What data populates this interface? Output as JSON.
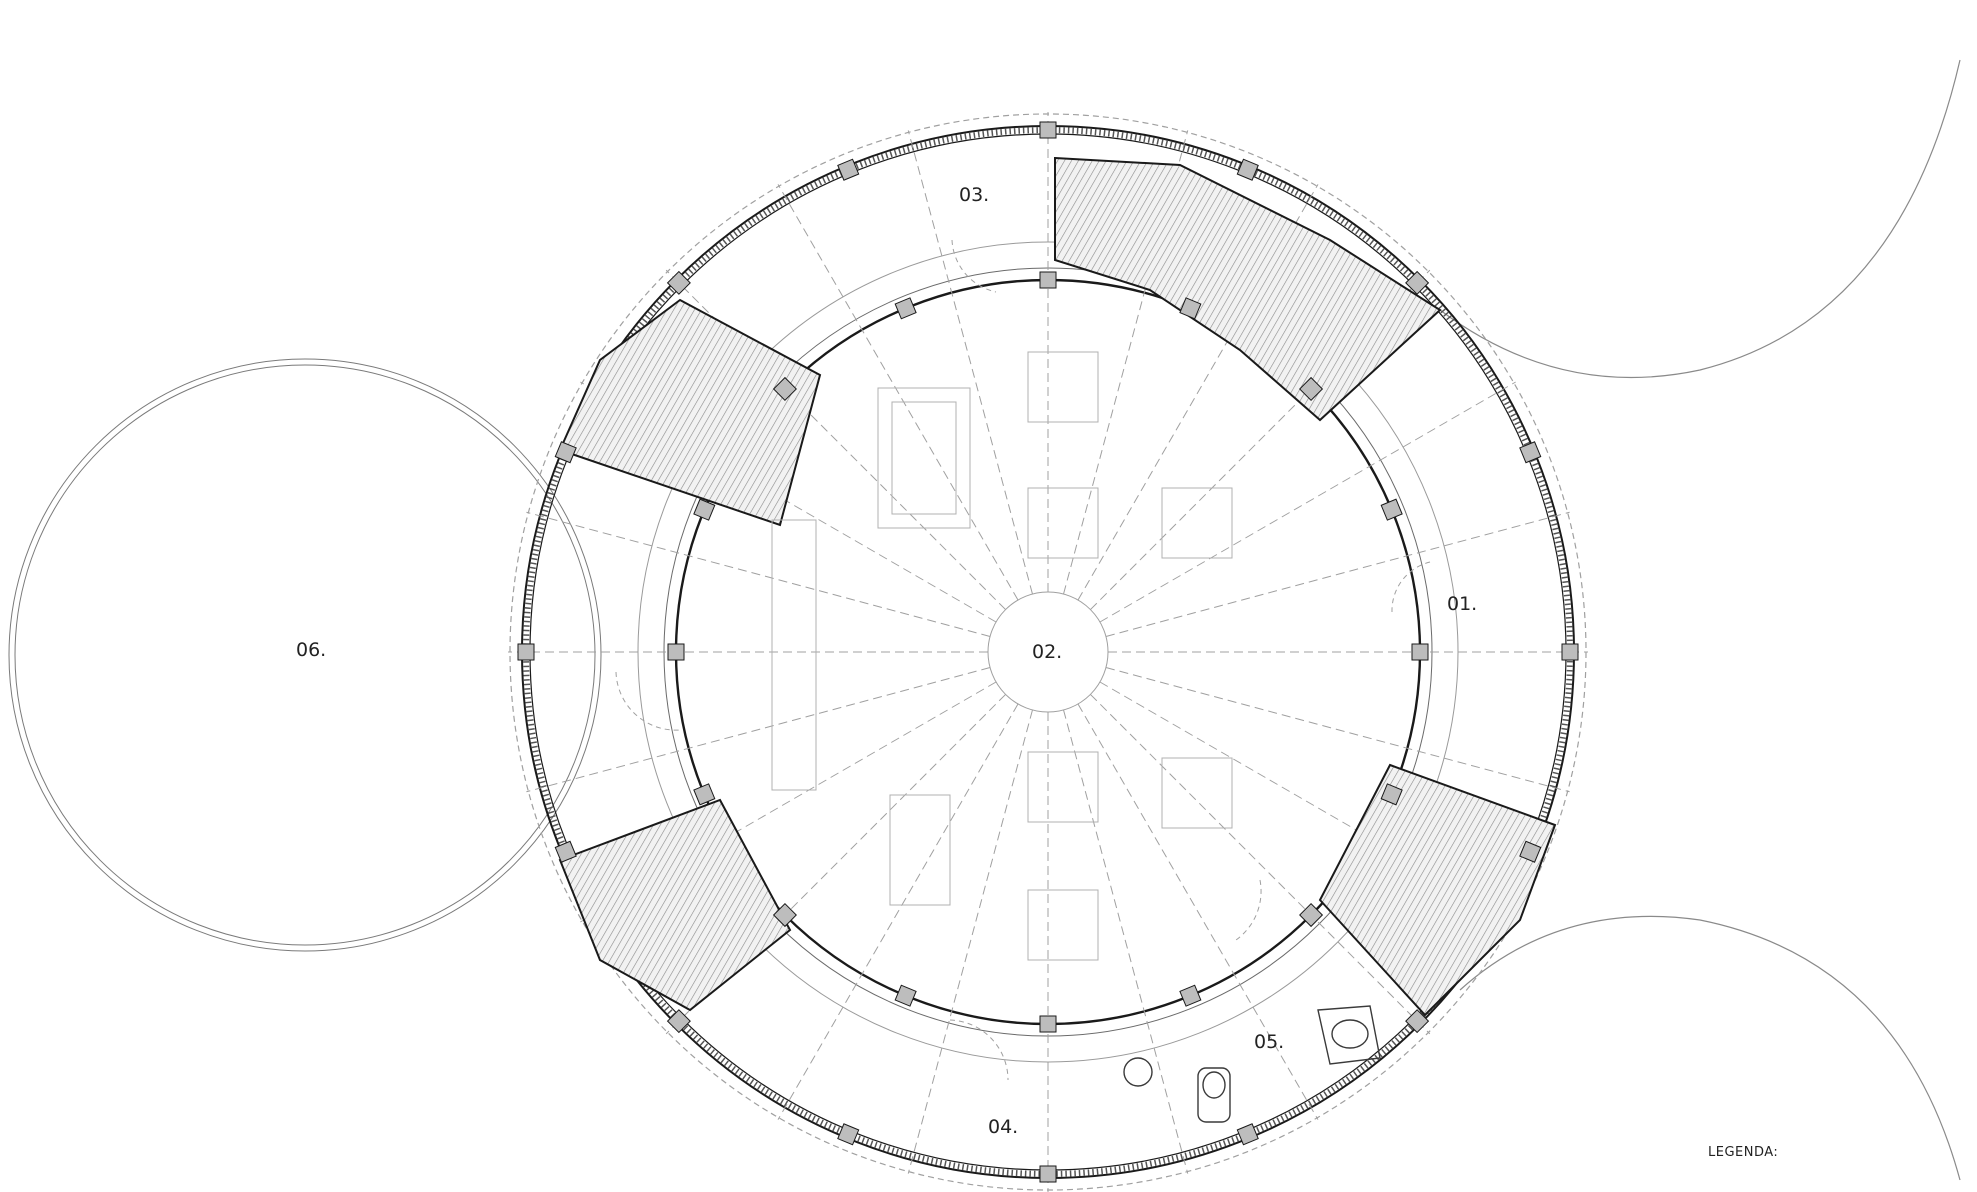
{
  "plan": {
    "room_labels": {
      "r01": "01.",
      "r02": "02.",
      "r03": "03.",
      "r04": "04.",
      "r05": "05.",
      "r06": "06."
    },
    "legend_title": "LEGENDA:"
  },
  "colors": {
    "line": "#1a1a1a",
    "thin_line": "#9a9a9a",
    "dashed": "#a0a0a0",
    "column_fill": "#bdbdbd",
    "hatch": "#8a8a8a"
  }
}
